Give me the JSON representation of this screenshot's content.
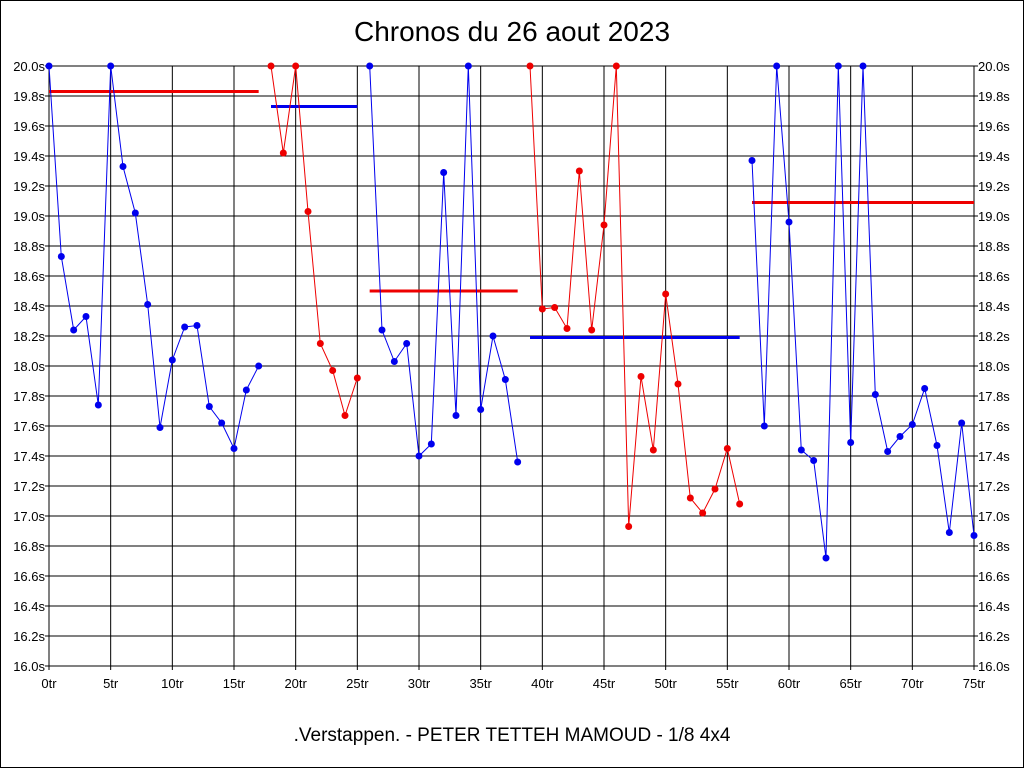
{
  "chart_data": {
    "type": "line",
    "title": "Chronos du 26 aout 2023",
    "subtitle": ".Verstappen. - PETER TETTEH MAMOUD - 1/8 4x4",
    "xlim": [
      0,
      75
    ],
    "ylim": [
      16.0,
      20.0
    ],
    "x_ticks": [
      0,
      5,
      10,
      15,
      20,
      25,
      30,
      35,
      40,
      45,
      50,
      55,
      60,
      65,
      70,
      75
    ],
    "x_tick_labels": [
      "0tr",
      "5tr",
      "10tr",
      "15tr",
      "20tr",
      "25tr",
      "30tr",
      "35tr",
      "40tr",
      "45tr",
      "50tr",
      "55tr",
      "60tr",
      "65tr",
      "70tr",
      "75tr"
    ],
    "y_ticks": [
      16.0,
      16.2,
      16.4,
      16.6,
      16.8,
      17.0,
      17.2,
      17.4,
      17.6,
      17.8,
      18.0,
      18.2,
      18.4,
      18.6,
      18.8,
      19.0,
      19.2,
      19.4,
      19.6,
      19.8,
      20.0
    ],
    "y_tick_labels": [
      "16.0s",
      "16.2s",
      "16.4s",
      "16.6s",
      "16.8s",
      "17.0s",
      "17.2s",
      "17.4s",
      "17.6s",
      "17.8s",
      "18.0s",
      "18.2s",
      "18.4s",
      "18.6s",
      "18.8s",
      "19.0s",
      "19.2s",
      "19.4s",
      "19.6s",
      "19.8s",
      "20.0s"
    ],
    "grid": true,
    "colors": {
      "blue": "#0000ee",
      "red": "#ee0000"
    },
    "series": [
      {
        "color": "#0000ee",
        "x": [
          0,
          1,
          2,
          3,
          4,
          5,
          6,
          7,
          8,
          9,
          10,
          11,
          12,
          13,
          14,
          15,
          16,
          17
        ],
        "y": [
          20.0,
          18.73,
          18.24,
          18.33,
          17.74,
          20.0,
          19.33,
          19.02,
          18.41,
          17.59,
          18.04,
          18.26,
          18.27,
          17.73,
          17.62,
          17.45,
          17.84,
          18.0
        ]
      },
      {
        "color": "#ee0000",
        "x": [
          18,
          19,
          20,
          21,
          22,
          23,
          24,
          25
        ],
        "y": [
          20.0,
          19.42,
          20.0,
          19.03,
          18.15,
          17.97,
          17.67,
          17.92
        ]
      },
      {
        "color": "#0000ee",
        "x": [
          26,
          27,
          28,
          29,
          30,
          31,
          32,
          33,
          34,
          35,
          36,
          37,
          38
        ],
        "y": [
          20.0,
          18.24,
          18.03,
          18.15,
          17.4,
          17.48,
          19.29,
          17.67,
          20.0,
          17.71,
          18.2,
          17.91,
          17.36
        ]
      },
      {
        "color": "#ee0000",
        "x": [
          39,
          40,
          41,
          42,
          43,
          44,
          45,
          46,
          47,
          48,
          49,
          50,
          51,
          52,
          53,
          54,
          55,
          56
        ],
        "y": [
          20.0,
          18.38,
          18.39,
          18.25,
          19.3,
          18.24,
          18.94,
          20.0,
          16.93,
          17.93,
          17.44,
          18.48,
          17.88,
          17.12,
          17.02,
          17.18,
          17.45,
          17.08
        ]
      },
      {
        "color": "#0000ee",
        "x": [
          57,
          58,
          59,
          60,
          61,
          62,
          63,
          64,
          65,
          66,
          67,
          68,
          69,
          70,
          71,
          72,
          73,
          74,
          75
        ],
        "y": [
          19.37,
          17.6,
          20.0,
          18.96,
          17.44,
          17.37,
          16.72,
          20.0,
          17.49,
          20.0,
          17.81,
          17.43,
          17.53,
          17.61,
          17.85,
          17.47,
          16.89,
          17.62,
          16.87
        ]
      }
    ],
    "averages": [
      {
        "color": "#ee0000",
        "x": [
          0,
          17
        ],
        "y": 19.83
      },
      {
        "color": "#0000ee",
        "x": [
          18,
          25
        ],
        "y": 19.73
      },
      {
        "color": "#ee0000",
        "x": [
          26,
          38
        ],
        "y": 18.5
      },
      {
        "color": "#0000ee",
        "x": [
          39,
          56
        ],
        "y": 18.19
      },
      {
        "color": "#ee0000",
        "x": [
          57,
          75
        ],
        "y": 19.09
      }
    ]
  }
}
